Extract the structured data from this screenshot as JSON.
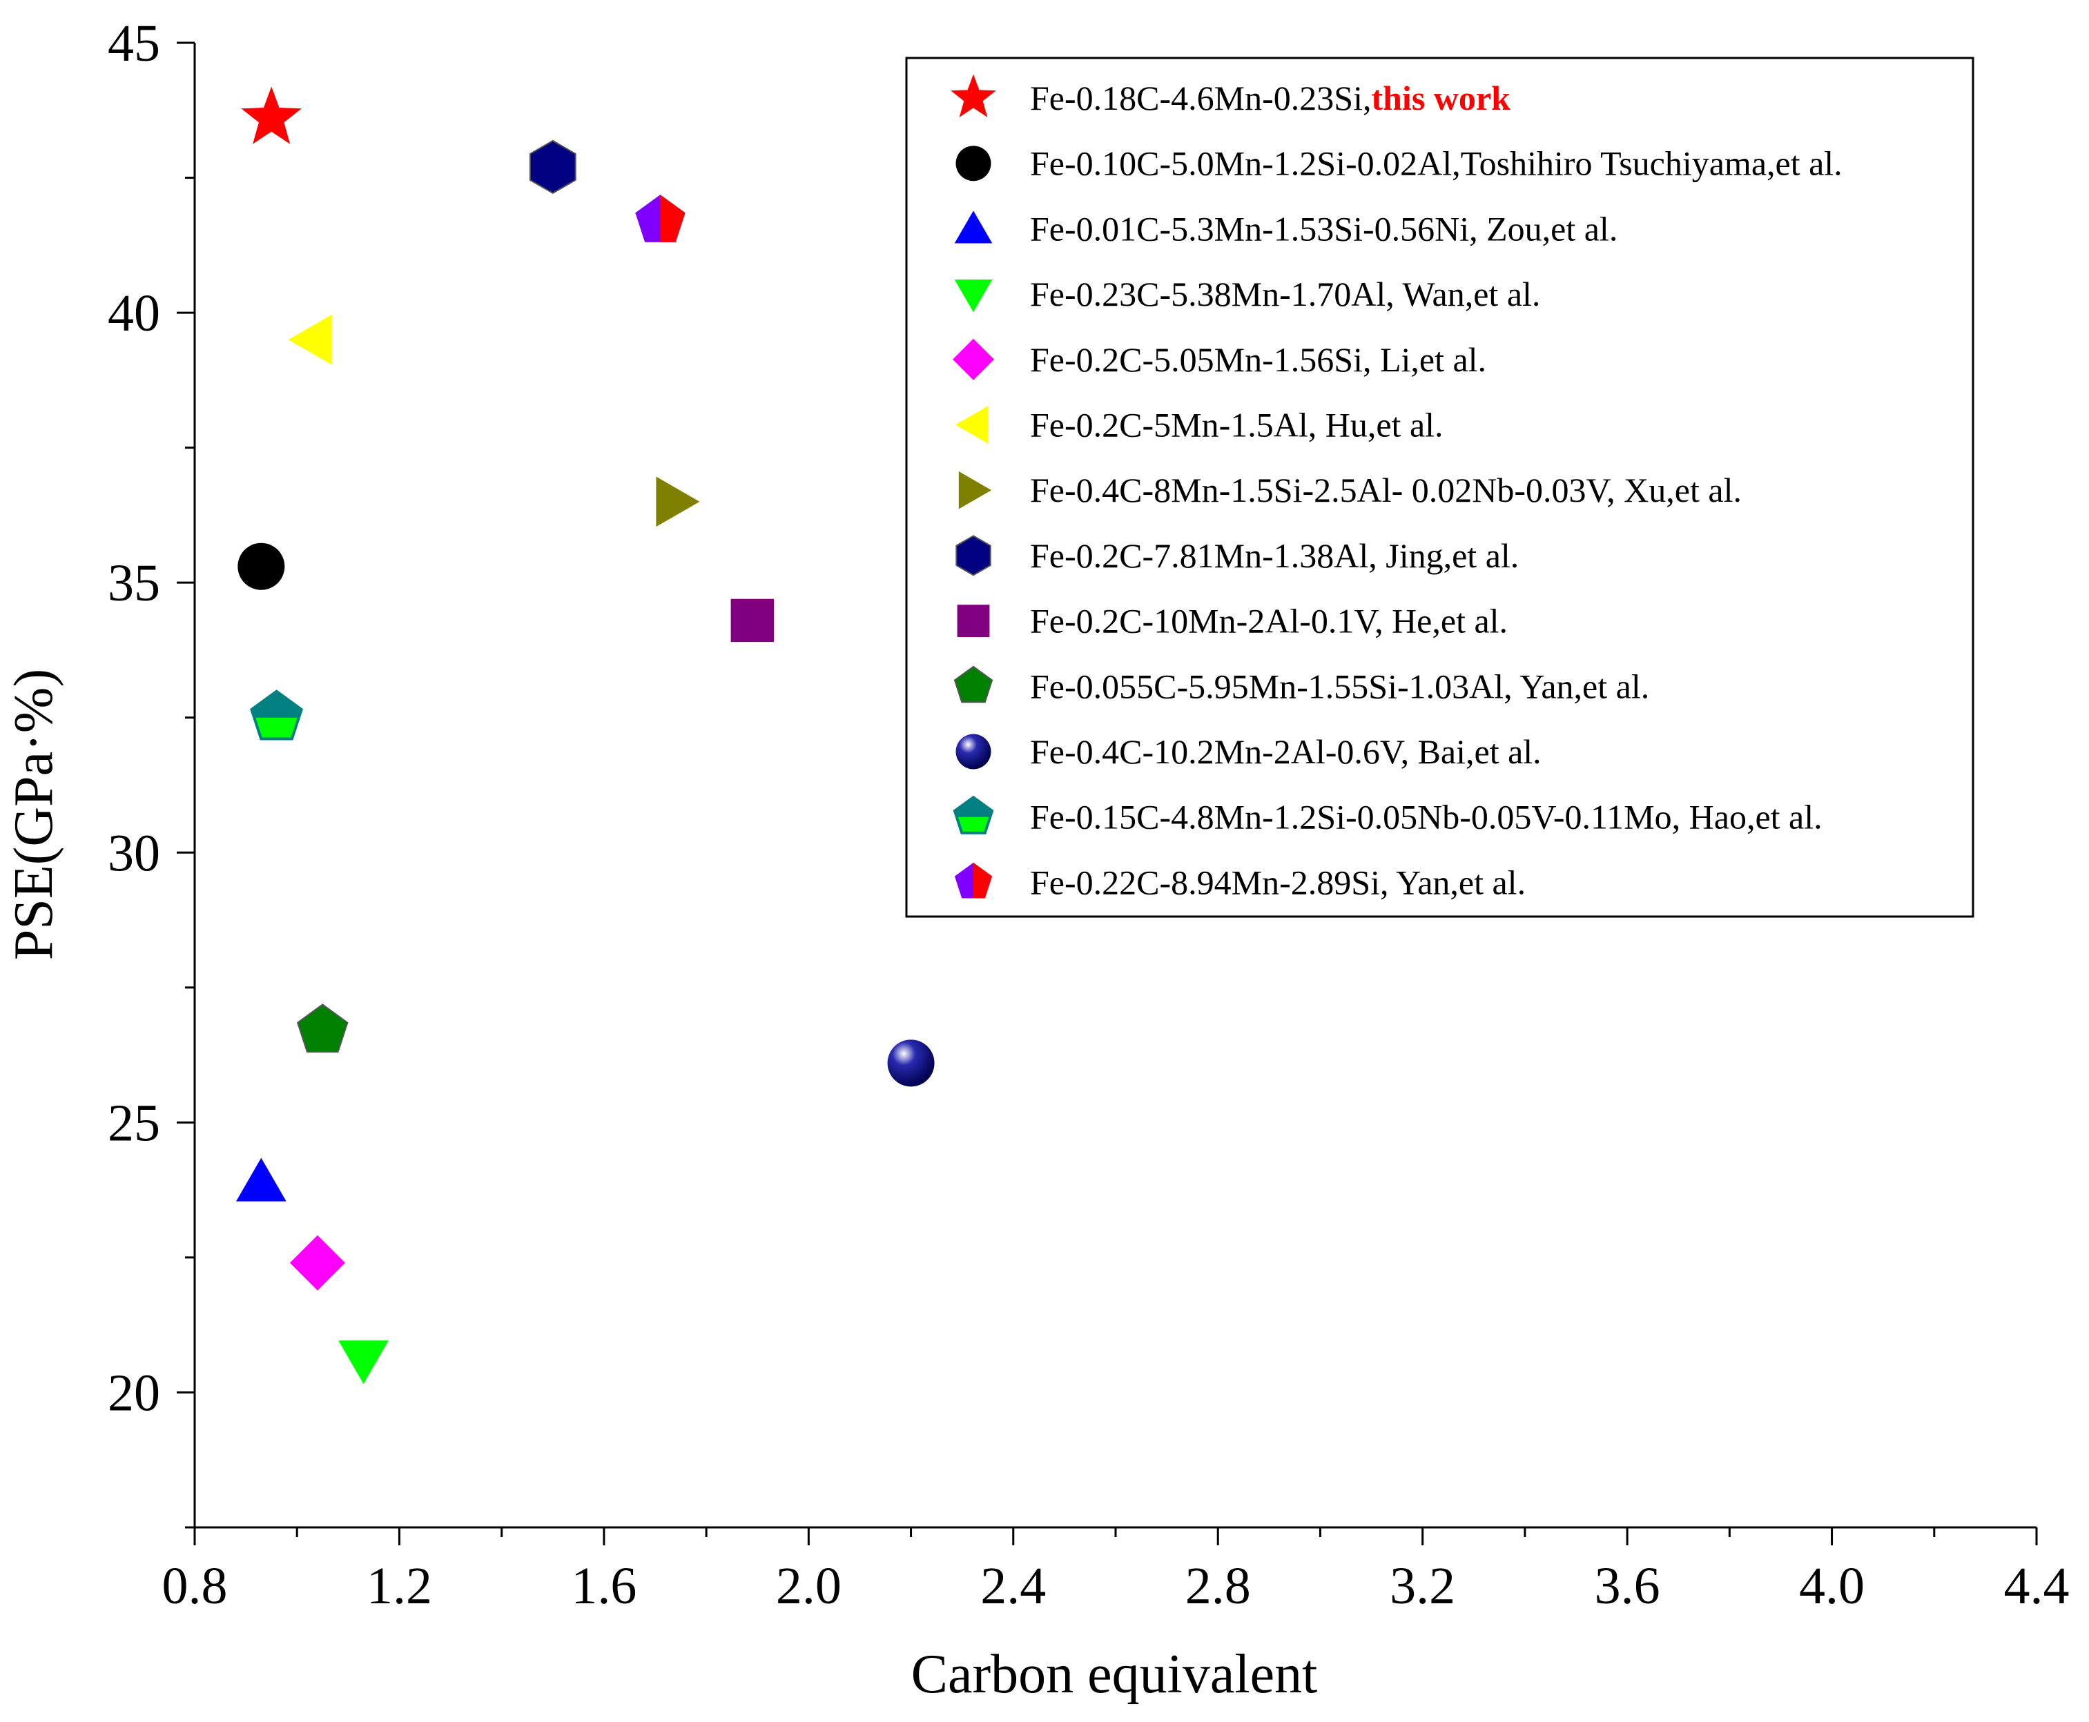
{
  "chart_data": {
    "type": "scatter",
    "title": "",
    "xlabel": "Carbon equivalent",
    "ylabel": "PSE(GPa·%)",
    "xlim": [
      0.8,
      4.4
    ],
    "ylim": [
      17.5,
      45
    ],
    "x_ticks": [
      0.8,
      1.2,
      1.6,
      2.0,
      2.4,
      2.8,
      3.2,
      3.6,
      4.0,
      4.4
    ],
    "x_tick_labels": [
      "0.8",
      "1.2",
      "1.6",
      "2.0",
      "2.4",
      "2.8",
      "3.2",
      "3.6",
      "4.0",
      "4.4"
    ],
    "y_ticks": [
      20,
      25,
      30,
      35,
      40,
      45
    ],
    "y_tick_labels": [
      "20",
      "25",
      "30",
      "35",
      "40",
      "45"
    ],
    "legend_position": "top-right",
    "series": [
      {
        "name": "Fe-0.18C-4.6Mn-0.23Si,",
        "highlight": "this work",
        "marker": "star",
        "color": "#ff0000",
        "x": 0.95,
        "y": 43.6
      },
      {
        "name": "Fe-0.10C-5.0Mn-1.2Si-0.02Al,Toshihiro Tsuchiyama,et al.",
        "marker": "circle",
        "color": "#000000",
        "x": 0.93,
        "y": 35.3
      },
      {
        "name": "Fe-0.01C-5.3Mn-1.53Si-0.56Ni, Zou,et al.",
        "marker": "triangle-up",
        "color": "#0000ff",
        "x": 0.93,
        "y": 23.9
      },
      {
        "name": "Fe-0.23C-5.38Mn-1.70Al, Wan,et al.",
        "marker": "triangle-down",
        "color": "#00ff00",
        "x": 1.13,
        "y": 20.6
      },
      {
        "name": "Fe-0.2C-5.05Mn-1.56Si, Li,et al.",
        "marker": "diamond",
        "color": "#ff00ff",
        "x": 1.04,
        "y": 22.4
      },
      {
        "name": "Fe-0.2C-5Mn-1.5Al, Hu,et al.",
        "marker": "triangle-left",
        "color": "#ffff00",
        "x": 1.03,
        "y": 39.5
      },
      {
        "name": "Fe-0.4C-8Mn-1.5Si-2.5Al- 0.02Nb-0.03V, Xu,et al.",
        "marker": "triangle-right",
        "color": "#808000",
        "x": 1.74,
        "y": 36.5
      },
      {
        "name": "Fe-0.2C-7.81Mn-1.38Al, Jing,et al.",
        "marker": "hexagon",
        "color": "#000080",
        "x": 1.5,
        "y": 42.7
      },
      {
        "name": "Fe-0.2C-10Mn-2Al-0.1V, He,et al.",
        "marker": "square",
        "color": "#800080",
        "x": 1.89,
        "y": 34.3
      },
      {
        "name": "Fe-0.055C-5.95Mn-1.55Si-1.03Al, Yan,et al.",
        "marker": "pentagon",
        "color": "#008000",
        "x": 1.05,
        "y": 26.7
      },
      {
        "name": "Fe-0.4C-10.2Mn-2Al-0.6V, Bai,et al.",
        "marker": "sphere",
        "color": "#000080",
        "x": 2.2,
        "y": 26.1
      },
      {
        "name": "Fe-0.15C-4.8Mn-1.2Si-0.05Nb-0.05V-0.11Mo, Hao,et al.",
        "marker": "pentagon-half",
        "color": "#008080",
        "color2": "#00ff00",
        "x": 0.96,
        "y": 32.5
      },
      {
        "name": "Fe-0.22C-8.94Mn-2.89Si, Yan,et al.",
        "marker": "pentagon-half",
        "color": "#8000ff",
        "color2": "#ff0000",
        "x": 1.71,
        "y": 41.7
      }
    ]
  }
}
